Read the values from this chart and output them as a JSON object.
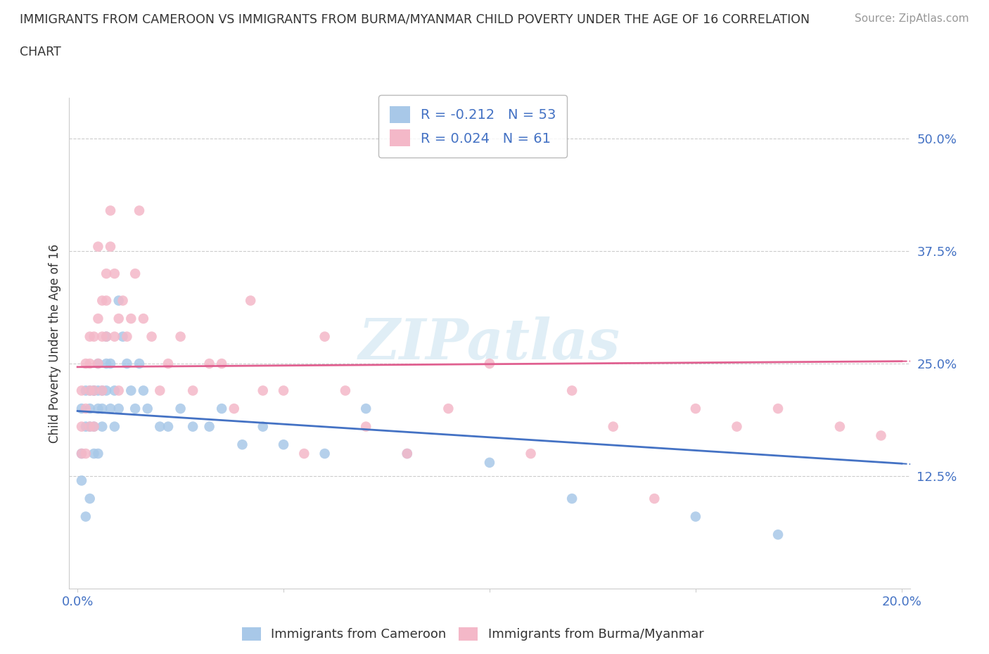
{
  "title_line1": "IMMIGRANTS FROM CAMEROON VS IMMIGRANTS FROM BURMA/MYANMAR CHILD POVERTY UNDER THE AGE OF 16 CORRELATION",
  "title_line2": "CHART",
  "source": "Source: ZipAtlas.com",
  "ylabel": "Child Poverty Under the Age of 16",
  "xlim": [
    -0.002,
    0.202
  ],
  "ylim": [
    0.0,
    0.545
  ],
  "xticks": [
    0.0,
    0.05,
    0.1,
    0.15,
    0.2
  ],
  "xticklabels": [
    "0.0%",
    "",
    "",
    "",
    "20.0%"
  ],
  "yticks": [
    0.125,
    0.25,
    0.375,
    0.5
  ],
  "yticklabels": [
    "12.5%",
    "25.0%",
    "37.5%",
    "50.0%"
  ],
  "R_cameroon": -0.212,
  "N_cameroon": 53,
  "R_burma": 0.024,
  "N_burma": 61,
  "color_cameroon": "#a8c8e8",
  "color_burma": "#f4b8c8",
  "line_color_cameroon": "#4472c4",
  "line_color_burma": "#e06090",
  "watermark": "ZIPatlas",
  "legend_label_cameroon": "Immigrants from Cameroon",
  "legend_label_burma": "Immigrants from Burma/Myanmar",
  "cam_x": [
    0.001,
    0.001,
    0.001,
    0.002,
    0.002,
    0.002,
    0.003,
    0.003,
    0.003,
    0.003,
    0.004,
    0.004,
    0.004,
    0.004,
    0.005,
    0.005,
    0.005,
    0.005,
    0.006,
    0.006,
    0.006,
    0.007,
    0.007,
    0.007,
    0.008,
    0.008,
    0.009,
    0.009,
    0.01,
    0.01,
    0.011,
    0.012,
    0.013,
    0.014,
    0.015,
    0.016,
    0.017,
    0.02,
    0.022,
    0.025,
    0.028,
    0.032,
    0.035,
    0.04,
    0.045,
    0.05,
    0.06,
    0.07,
    0.08,
    0.1,
    0.12,
    0.15,
    0.17
  ],
  "cam_y": [
    0.2,
    0.15,
    0.12,
    0.18,
    0.22,
    0.08,
    0.2,
    0.22,
    0.18,
    0.1,
    0.22,
    0.18,
    0.15,
    0.22,
    0.2,
    0.22,
    0.25,
    0.15,
    0.2,
    0.22,
    0.18,
    0.25,
    0.22,
    0.28,
    0.25,
    0.2,
    0.22,
    0.18,
    0.32,
    0.2,
    0.28,
    0.25,
    0.22,
    0.2,
    0.25,
    0.22,
    0.2,
    0.18,
    0.18,
    0.2,
    0.18,
    0.18,
    0.2,
    0.16,
    0.18,
    0.16,
    0.15,
    0.2,
    0.15,
    0.14,
    0.1,
    0.08,
    0.06
  ],
  "burma_x": [
    0.001,
    0.001,
    0.001,
    0.002,
    0.002,
    0.002,
    0.003,
    0.003,
    0.003,
    0.003,
    0.004,
    0.004,
    0.004,
    0.005,
    0.005,
    0.005,
    0.006,
    0.006,
    0.006,
    0.007,
    0.007,
    0.007,
    0.008,
    0.008,
    0.009,
    0.009,
    0.01,
    0.01,
    0.011,
    0.012,
    0.013,
    0.014,
    0.015,
    0.016,
    0.018,
    0.02,
    0.022,
    0.025,
    0.028,
    0.032,
    0.035,
    0.038,
    0.042,
    0.045,
    0.05,
    0.055,
    0.06,
    0.065,
    0.07,
    0.08,
    0.09,
    0.1,
    0.11,
    0.12,
    0.13,
    0.14,
    0.15,
    0.16,
    0.17,
    0.185,
    0.195
  ],
  "burma_y": [
    0.22,
    0.18,
    0.15,
    0.25,
    0.2,
    0.15,
    0.28,
    0.22,
    0.18,
    0.25,
    0.28,
    0.22,
    0.18,
    0.3,
    0.38,
    0.25,
    0.32,
    0.22,
    0.28,
    0.35,
    0.28,
    0.32,
    0.38,
    0.42,
    0.35,
    0.28,
    0.3,
    0.22,
    0.32,
    0.28,
    0.3,
    0.35,
    0.42,
    0.3,
    0.28,
    0.22,
    0.25,
    0.28,
    0.22,
    0.25,
    0.25,
    0.2,
    0.32,
    0.22,
    0.22,
    0.15,
    0.28,
    0.22,
    0.18,
    0.15,
    0.2,
    0.25,
    0.15,
    0.22,
    0.18,
    0.1,
    0.2,
    0.18,
    0.2,
    0.18,
    0.17
  ]
}
